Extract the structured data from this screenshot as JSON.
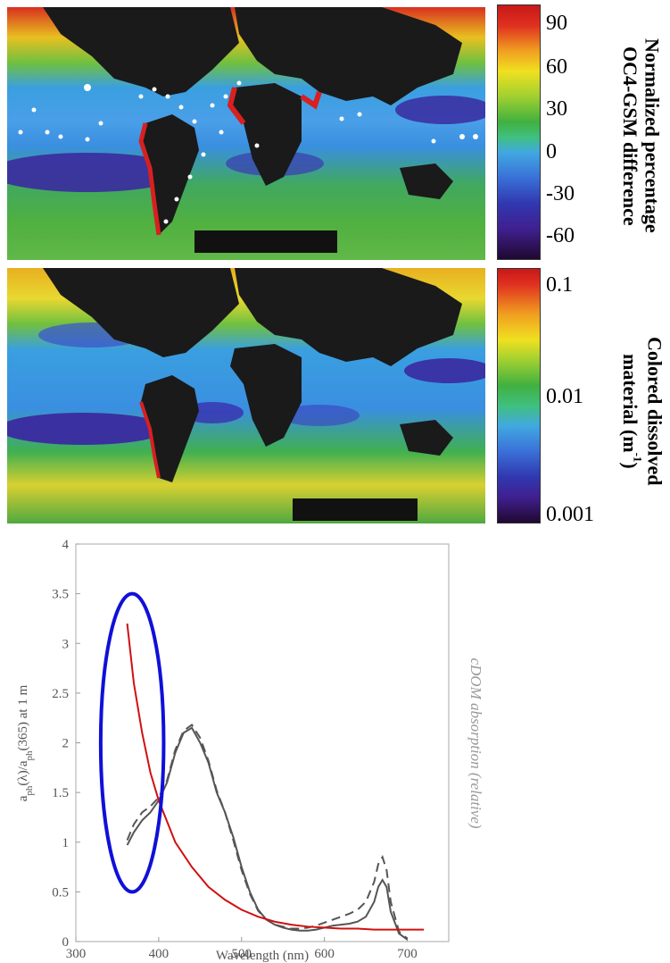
{
  "panel_top": {
    "title_line1": "Normalized percentage",
    "title_line2": "OC4-GSM difference",
    "colorbar_ticks": [
      "90",
      "60",
      "30",
      "0",
      "-30",
      "-60"
    ]
  },
  "panel_middle": {
    "title_line1": "Colored dissolved",
    "title_line2": "material (m",
    "title_sup": "-1",
    "title_end": ")",
    "colorbar_ticks": [
      "0.1",
      "0.01",
      "0.001"
    ]
  },
  "colors": {
    "ocean_low": "#3a1a8a",
    "ocean_mid": "#3a8fe0",
    "ocean_green": "#3aa83a",
    "ocean_yellow": "#e8d020",
    "ocean_red": "#d02010",
    "land": "#1a1a1a",
    "cdom_curve": "#d01010",
    "ellipse": "#1010d8",
    "absorption_curves": "#555555"
  },
  "chart_data": {
    "type": "line",
    "xlabel": "Wavelength (nm)",
    "ylabel": "a_ph(λ)/a_ph(365) at 1 m",
    "ylabel_right": "cDOM absorption (relative)",
    "xlim": [
      300,
      750
    ],
    "ylim": [
      0,
      4
    ],
    "x_ticks": [
      "300",
      "400",
      "500",
      "600",
      "700"
    ],
    "y_ticks": [
      "0",
      "0.5",
      "1",
      "1.5",
      "2",
      "2.5",
      "3",
      "3.5",
      "4"
    ],
    "series": [
      {
        "style": "solid-gray",
        "x": [
          362,
          370,
          380,
          390,
          400,
          410,
          420,
          430,
          440,
          450,
          460,
          470,
          480,
          490,
          500,
          510,
          520,
          530,
          540,
          550,
          560,
          570,
          580,
          590,
          600,
          610,
          620,
          630,
          640,
          650,
          660,
          665,
          670,
          675,
          680,
          690,
          700
        ],
        "y": [
          0.97,
          1.1,
          1.22,
          1.3,
          1.42,
          1.6,
          1.9,
          2.1,
          2.15,
          2.0,
          1.8,
          1.5,
          1.3,
          1.05,
          0.75,
          0.5,
          0.32,
          0.22,
          0.17,
          0.14,
          0.12,
          0.11,
          0.11,
          0.12,
          0.14,
          0.16,
          0.17,
          0.18,
          0.2,
          0.25,
          0.4,
          0.55,
          0.62,
          0.55,
          0.3,
          0.08,
          0.02
        ]
      },
      {
        "style": "dashed-gray",
        "x": [
          362,
          370,
          380,
          390,
          400,
          410,
          420,
          430,
          440,
          450,
          460,
          470,
          480,
          490,
          500,
          510,
          520,
          530,
          540,
          550,
          560,
          570,
          580,
          590,
          600,
          610,
          620,
          630,
          640,
          650,
          660,
          665,
          670,
          675,
          680,
          690,
          700
        ],
        "y": [
          1.02,
          1.18,
          1.3,
          1.36,
          1.45,
          1.62,
          1.93,
          2.12,
          2.18,
          2.05,
          1.82,
          1.52,
          1.3,
          1.02,
          0.72,
          0.48,
          0.31,
          0.22,
          0.17,
          0.15,
          0.13,
          0.13,
          0.14,
          0.16,
          0.19,
          0.22,
          0.25,
          0.28,
          0.32,
          0.4,
          0.6,
          0.78,
          0.85,
          0.72,
          0.4,
          0.1,
          0.03
        ]
      },
      {
        "style": "red",
        "x": [
          362,
          370,
          380,
          390,
          400,
          420,
          440,
          460,
          480,
          500,
          520,
          540,
          560,
          580,
          600,
          620,
          640,
          660,
          680,
          700,
          720
        ],
        "y": [
          3.2,
          2.6,
          2.1,
          1.7,
          1.42,
          1.0,
          0.75,
          0.55,
          0.42,
          0.32,
          0.25,
          0.2,
          0.17,
          0.15,
          0.14,
          0.13,
          0.13,
          0.12,
          0.12,
          0.12,
          0.12
        ]
      }
    ],
    "annotations": [
      {
        "type": "ellipse",
        "cx": 368,
        "cy": 2.0,
        "rx": 38,
        "ry": 1.5
      }
    ]
  }
}
